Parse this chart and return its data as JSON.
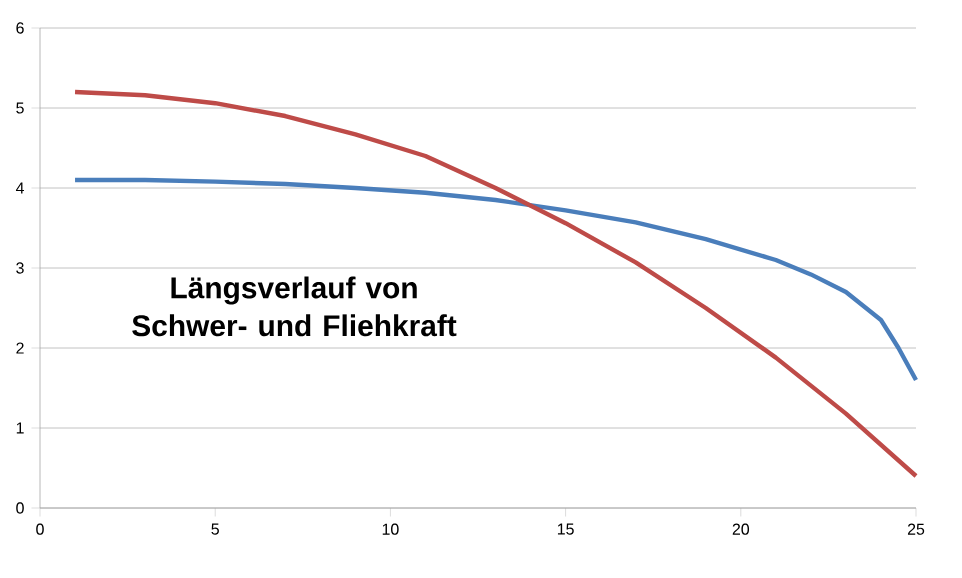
{
  "chart_data": {
    "type": "line",
    "title": "Längsverlauf von Schwer- und Fliehkraft",
    "series": [
      {
        "color": "#4a7ebb",
        "x": [
          1,
          3,
          5,
          7,
          9,
          11,
          13,
          15,
          17,
          19,
          21,
          22,
          23,
          24,
          24.5,
          25
        ],
        "values": [
          4.1,
          4.1,
          4.08,
          4.05,
          4.0,
          3.94,
          3.85,
          3.72,
          3.57,
          3.36,
          3.1,
          2.92,
          2.7,
          2.35,
          2.0,
          1.6
        ]
      },
      {
        "color": "#be4b48",
        "x": [
          1,
          3,
          5,
          7,
          9,
          11,
          13,
          15,
          17,
          19,
          21,
          23,
          25
        ],
        "values": [
          5.2,
          5.16,
          5.06,
          4.9,
          4.67,
          4.4,
          4.0,
          3.56,
          3.07,
          2.5,
          1.88,
          1.18,
          0.4
        ]
      }
    ],
    "xlim": [
      0,
      25
    ],
    "xticks": [
      0,
      5,
      10,
      15,
      20,
      25
    ],
    "ylim": [
      0,
      6
    ],
    "yticks": [
      0,
      1,
      2,
      3,
      4,
      5,
      6
    ],
    "grid": "y",
    "marker": "none",
    "line_style": "solid"
  }
}
